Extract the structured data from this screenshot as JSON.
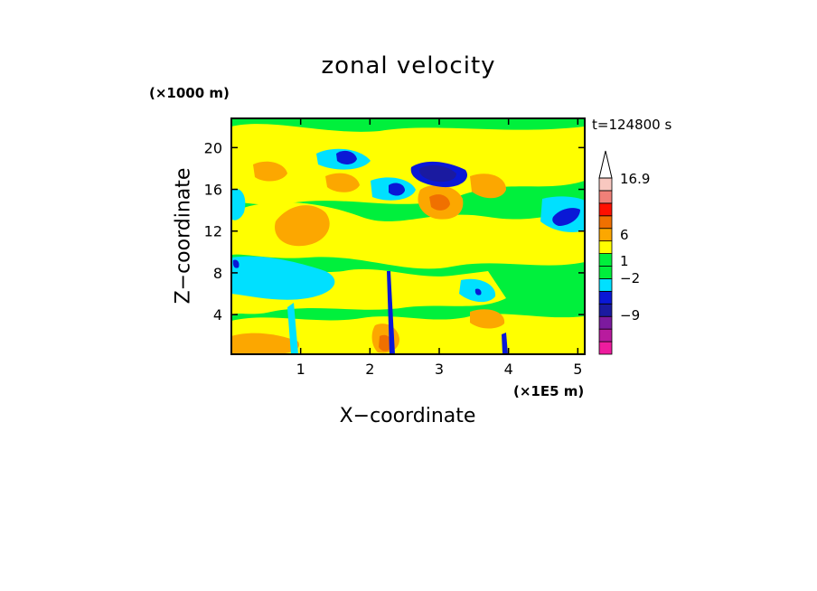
{
  "chart_data": {
    "type": "heatmap",
    "title": "zonal velocity",
    "xlabel": "X−coordinate",
    "ylabel": "Z−coordinate",
    "x_unit": "(×1E5 m)",
    "y_unit": "(×1000 m)",
    "time_label": "t=124800 s",
    "xlim": [
      0,
      5.1
    ],
    "ylim": [
      0.2,
      22.8
    ],
    "x_ticks": [
      "1",
      "2",
      "3",
      "4",
      "5"
    ],
    "y_ticks": [
      "4",
      "8",
      "12",
      "16",
      "20"
    ],
    "legend": {
      "labels": [
        "16.9",
        "6",
        "1",
        "−2",
        "−9"
      ],
      "levels": [
        -16,
        -12,
        -9,
        -6,
        -4,
        -2,
        -1,
        0,
        0.5,
        1,
        3,
        6,
        9,
        12,
        16.9
      ],
      "colors": [
        "#ee1c9e",
        "#b81b9e",
        "#7c1a9e",
        "#1a1aa0",
        "#0a18d6",
        "#00e0ff",
        "#00ee3c",
        "#00f03c",
        "#ffff00",
        "#fca700",
        "#f07000",
        "#ff1000",
        "#f08078",
        "#f8c8c0"
      ]
    },
    "features": [
      {
        "x": 2.6,
        "z": 18.0,
        "u": -12
      },
      {
        "x": 1.65,
        "z": 19.8,
        "u": -9
      },
      {
        "x": 4.85,
        "z": 13.6,
        "u": -9
      },
      {
        "x": 3.0,
        "z": 14.5,
        "u": 6
      },
      {
        "x": 1.0,
        "z": 12.5,
        "u": 3
      },
      {
        "x": 0.5,
        "z": 17.0,
        "u": 3
      },
      {
        "x": 3.4,
        "z": 17.2,
        "u": 3
      },
      {
        "x": 0.3,
        "z": 1.0,
        "u": 3
      },
      {
        "x": 2.35,
        "z": 2.0,
        "u": 6
      },
      {
        "x": 0.8,
        "z": 7.5,
        "u": -4
      },
      {
        "x": 4.2,
        "z": 9.0,
        "u": 1
      }
    ]
  }
}
